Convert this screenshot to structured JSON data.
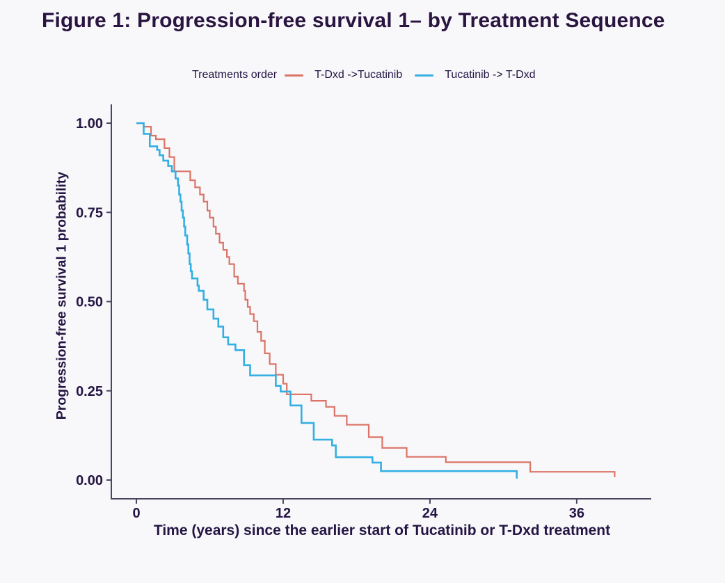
{
  "figure": {
    "title": "Figure 1: Progression-free survival 1– by Treatment Sequence"
  },
  "legend": {
    "title": "Treatments order",
    "items": [
      {
        "label": "T-Dxd ->Tucatinib",
        "color": "#DB7467"
      },
      {
        "label": "Tucatinib -> T-Dxd",
        "color": "#33AFE1"
      }
    ]
  },
  "colors": {
    "background": "#F8F8FB",
    "axis": "#4B4560",
    "text": "#241543",
    "series_tdxd_first": "#DB7467",
    "series_tucatinib_first": "#33AFE1"
  },
  "chart_data": {
    "type": "line",
    "subtype": "kaplan-meier-step",
    "title": "Figure 1: Progression-free survival 1– by Treatment Sequence",
    "xlabel": "Time (years) since the earlier start of Tucatinib or T-Dxd treatment",
    "ylabel": "Progression-free survival 1 probability",
    "legend_title": "Treatments order",
    "legend_position": "top",
    "grid": false,
    "xlim": [
      0,
      42
    ],
    "ylim": [
      0,
      1.05
    ],
    "x_ticks": [
      0,
      12,
      24,
      36
    ],
    "x_tick_labels": [
      "0",
      "12",
      "24",
      "36"
    ],
    "y_ticks": [
      0,
      0.25,
      0.5,
      0.75,
      1
    ],
    "y_tick_labels": [
      "0.00",
      "0.25",
      "0.50",
      "0.75",
      "1.00"
    ],
    "series": [
      {
        "name": "T-Dxd ->Tucatinib",
        "color": "#DB7467",
        "points": [
          [
            0,
            1.0
          ],
          [
            0.6,
            0.99
          ],
          [
            1.2,
            0.965
          ],
          [
            1.6,
            0.955
          ],
          [
            2.3,
            0.93
          ],
          [
            2.7,
            0.905
          ],
          [
            3.1,
            0.865
          ],
          [
            4.4,
            0.84
          ],
          [
            4.8,
            0.82
          ],
          [
            5.2,
            0.8
          ],
          [
            5.5,
            0.78
          ],
          [
            5.8,
            0.755
          ],
          [
            6.0,
            0.735
          ],
          [
            6.3,
            0.71
          ],
          [
            6.5,
            0.69
          ],
          [
            6.8,
            0.665
          ],
          [
            7.1,
            0.645
          ],
          [
            7.4,
            0.625
          ],
          [
            7.6,
            0.605
          ],
          [
            8.0,
            0.57
          ],
          [
            8.3,
            0.55
          ],
          [
            8.8,
            0.53
          ],
          [
            8.9,
            0.505
          ],
          [
            9.1,
            0.485
          ],
          [
            9.3,
            0.465
          ],
          [
            9.6,
            0.445
          ],
          [
            9.9,
            0.415
          ],
          [
            10.2,
            0.39
          ],
          [
            10.5,
            0.355
          ],
          [
            10.9,
            0.325
          ],
          [
            11.4,
            0.295
          ],
          [
            12.0,
            0.27
          ],
          [
            12.3,
            0.24
          ],
          [
            14.3,
            0.222
          ],
          [
            15.5,
            0.205
          ],
          [
            16.2,
            0.18
          ],
          [
            17.2,
            0.155
          ],
          [
            19.0,
            0.12
          ],
          [
            20.1,
            0.09
          ],
          [
            22.1,
            0.065
          ],
          [
            25.3,
            0.05
          ],
          [
            32.2,
            0.023
          ],
          [
            39.1,
            0.008
          ]
        ]
      },
      {
        "name": "Tucatinib -> T-Dxd",
        "color": "#33AFE1",
        "points": [
          [
            0,
            1.0
          ],
          [
            0.6,
            0.97
          ],
          [
            1.1,
            0.935
          ],
          [
            1.7,
            0.925
          ],
          [
            1.9,
            0.91
          ],
          [
            2.2,
            0.895
          ],
          [
            2.6,
            0.88
          ],
          [
            2.9,
            0.865
          ],
          [
            3.2,
            0.845
          ],
          [
            3.4,
            0.825
          ],
          [
            3.5,
            0.8
          ],
          [
            3.6,
            0.78
          ],
          [
            3.7,
            0.755
          ],
          [
            3.8,
            0.735
          ],
          [
            3.9,
            0.71
          ],
          [
            4.0,
            0.685
          ],
          [
            4.15,
            0.66
          ],
          [
            4.25,
            0.635
          ],
          [
            4.35,
            0.605
          ],
          [
            4.45,
            0.585
          ],
          [
            4.55,
            0.565
          ],
          [
            5.0,
            0.545
          ],
          [
            5.1,
            0.53
          ],
          [
            5.5,
            0.505
          ],
          [
            5.8,
            0.478
          ],
          [
            6.3,
            0.452
          ],
          [
            6.7,
            0.43
          ],
          [
            7.1,
            0.4
          ],
          [
            7.5,
            0.38
          ],
          [
            8.1,
            0.364
          ],
          [
            8.8,
            0.322
          ],
          [
            9.3,
            0.293
          ],
          [
            11.4,
            0.264
          ],
          [
            11.8,
            0.248
          ],
          [
            12.6,
            0.209
          ],
          [
            13.5,
            0.16
          ],
          [
            14.5,
            0.113
          ],
          [
            16.0,
            0.097
          ],
          [
            16.3,
            0.064
          ],
          [
            19.3,
            0.049
          ],
          [
            20.0,
            0.025
          ],
          [
            31.1,
            0.004
          ]
        ]
      }
    ]
  }
}
